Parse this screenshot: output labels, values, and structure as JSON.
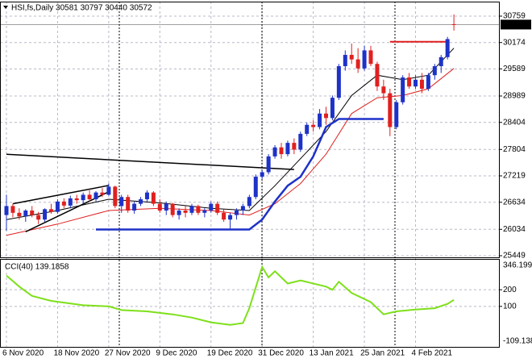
{
  "chart_data": [
    {
      "type": "candlestick",
      "title": "HSI,fs,Daily  30581 30797 30440 30572",
      "categories": [
        "6 Nov 2020",
        null,
        null,
        null,
        null,
        null,
        null,
        null,
        "18 Nov 2020",
        null,
        null,
        null,
        null,
        null,
        null,
        null,
        "27 Nov 2020",
        null,
        null,
        null,
        null,
        null,
        null,
        null,
        "9 Dec 2020",
        null,
        null,
        null,
        null,
        null,
        null,
        null,
        "19 Dec 2020",
        null,
        null,
        null,
        null,
        null,
        null,
        null,
        "31 Dec 2020",
        null,
        null,
        null,
        null,
        null,
        null,
        null,
        "13 Jan 2021",
        null,
        null,
        null,
        null,
        null,
        null,
        null,
        "25 Jan 2021",
        null,
        null,
        null,
        null,
        null,
        null,
        null,
        "4 Feb 2021",
        null,
        null,
        null,
        null,
        null,
        null
      ],
      "candles": [
        [
          26350,
          26800,
          26000,
          26550
        ],
        [
          26550,
          26600,
          26300,
          26400
        ],
        [
          26400,
          26500,
          26250,
          26320
        ],
        [
          26320,
          26480,
          26200,
          26450
        ],
        [
          26450,
          26550,
          26300,
          26350
        ],
        [
          26350,
          26420,
          26150,
          26250
        ],
        [
          26250,
          26500,
          26200,
          26480
        ],
        [
          26480,
          26600,
          26380,
          26420
        ],
        [
          26420,
          26700,
          26380,
          26650
        ],
        [
          26650,
          26720,
          26500,
          26560
        ],
        [
          26560,
          26780,
          26500,
          26720
        ],
        [
          26720,
          26800,
          26600,
          26680
        ],
        [
          26680,
          26850,
          26600,
          26800
        ],
        [
          26800,
          26900,
          26650,
          26700
        ],
        [
          26700,
          26880,
          26650,
          26850
        ],
        [
          26850,
          26950,
          26750,
          26800
        ],
        [
          26800,
          27050,
          26780,
          26980
        ],
        [
          26980,
          27000,
          26500,
          26550
        ],
        [
          26550,
          26800,
          26400,
          26750
        ],
        [
          26750,
          26800,
          26400,
          26450
        ],
        [
          26450,
          26650,
          26380,
          26600
        ],
        [
          26600,
          26750,
          26550,
          26700
        ],
        [
          26700,
          26900,
          26650,
          26850
        ],
        [
          26850,
          26880,
          26550,
          26600
        ],
        [
          26600,
          26700,
          26400,
          26450
        ],
        [
          26450,
          26650,
          26350,
          26600
        ],
        [
          26600,
          26620,
          26300,
          26350
        ],
        [
          26350,
          26500,
          26250,
          26450
        ],
        [
          26450,
          26550,
          26300,
          26400
        ],
        [
          26400,
          26600,
          26350,
          26550
        ],
        [
          26550,
          26580,
          26350,
          26400
        ],
        [
          26400,
          26500,
          26300,
          26450
        ],
        [
          26450,
          26650,
          26400,
          26600
        ],
        [
          26600,
          26650,
          26350,
          26400
        ],
        [
          26400,
          26480,
          26200,
          26250
        ],
        [
          26250,
          26400,
          26050,
          26350
        ],
        [
          26350,
          26500,
          26250,
          26450
        ],
        [
          26450,
          26600,
          26350,
          26550
        ],
        [
          26550,
          26800,
          26500,
          26750
        ],
        [
          26750,
          27250,
          26700,
          27200
        ],
        [
          27200,
          27350,
          27150,
          27300
        ],
        [
          27300,
          27700,
          27250,
          27650
        ],
        [
          27650,
          27900,
          27600,
          27850
        ],
        [
          27850,
          27950,
          27600,
          27700
        ],
        [
          27700,
          28000,
          27650,
          27950
        ],
        [
          27950,
          28050,
          27700,
          27800
        ],
        [
          27800,
          28200,
          27750,
          28150
        ],
        [
          28150,
          28400,
          28100,
          28350
        ],
        [
          28350,
          28450,
          28200,
          28300
        ],
        [
          28300,
          28700,
          28250,
          28600
        ],
        [
          28600,
          28750,
          28350,
          28500
        ],
        [
          28500,
          29000,
          28450,
          28950
        ],
        [
          28950,
          29700,
          28900,
          29650
        ],
        [
          29650,
          30000,
          29550,
          29900
        ],
        [
          29900,
          30150,
          29700,
          29800
        ],
        [
          29800,
          30050,
          29500,
          29600
        ],
        [
          29600,
          30100,
          29550,
          30000
        ],
        [
          30000,
          30100,
          29650,
          29700
        ],
        [
          29700,
          29750,
          29100,
          29200
        ],
        [
          29200,
          29350,
          28900,
          29050
        ],
        [
          29050,
          29150,
          28100,
          28300
        ],
        [
          28300,
          28900,
          28250,
          28850
        ],
        [
          28850,
          29450,
          28800,
          29400
        ],
        [
          29400,
          29500,
          29150,
          29200
        ],
        [
          29200,
          29450,
          29150,
          29350
        ],
        [
          29350,
          29500,
          29050,
          29150
        ],
        [
          29150,
          29500,
          29100,
          29450
        ],
        [
          29450,
          29700,
          29350,
          29650
        ],
        [
          29650,
          29900,
          29500,
          29850
        ],
        [
          29850,
          30300,
          29800,
          30250
        ],
        [
          30581,
          30797,
          30440,
          30572
        ]
      ],
      "up_color": "#1e32c8",
      "down_color": "#e02020",
      "series": [
        {
          "color": "#000000",
          "width": 1,
          "x": [
            0,
            8,
            16,
            24,
            32,
            38,
            42,
            46,
            50,
            54,
            58,
            60,
            62,
            66,
            70
          ],
          "values": [
            26250,
            26450,
            26700,
            26620,
            26500,
            26450,
            27000,
            27600,
            28200,
            29000,
            29450,
            29400,
            29350,
            29450,
            30050
          ]
        },
        {
          "color": "#e02020",
          "width": 1,
          "x": [
            0,
            8,
            16,
            24,
            32,
            38,
            42,
            46,
            50,
            54,
            58,
            62,
            66,
            70
          ],
          "values": [
            25900,
            26150,
            26450,
            26500,
            26450,
            26350,
            26600,
            27050,
            27700,
            28600,
            28950,
            29000,
            29150,
            29600
          ]
        },
        {
          "color": "#1e32c8",
          "width": 2.5,
          "x": [
            14,
            38,
            40,
            42,
            44,
            46,
            48,
            50,
            52,
            59
          ],
          "values": [
            26030,
            26030,
            26250,
            26650,
            27000,
            27200,
            27650,
            28300,
            28480,
            28480
          ]
        }
      ],
      "trendlines": [
        {
          "color": "#000000",
          "width": 1.5,
          "x": [
            0,
            45
          ],
          "values": [
            27697,
            27361
          ]
        },
        {
          "color": "#000000",
          "width": 1.5,
          "x": [
            1,
            16
          ],
          "values": [
            26600,
            27007
          ]
        },
        {
          "color": "#000000",
          "width": 1.5,
          "x": [
            3,
            16
          ],
          "values": [
            25980,
            26865
          ]
        },
        {
          "color": "#e02020",
          "width": 2,
          "x": [
            60,
            69
          ],
          "values": [
            30193,
            30193
          ]
        }
      ],
      "ylim": [
        25449,
        30759
      ],
      "yticks": [
        30759,
        30174,
        29589,
        28989,
        28404,
        27804,
        27219,
        26634,
        26034,
        25449
      ],
      "grid": true
    },
    {
      "type": "line",
      "title": "CCI(40) 139.1858",
      "x": [
        0,
        2,
        4,
        7,
        12,
        16,
        18,
        22,
        26,
        29,
        32,
        35,
        37,
        38,
        40,
        41,
        42,
        44,
        46,
        50,
        51,
        52,
        54,
        57,
        59,
        61,
        64,
        67,
        69,
        70
      ],
      "values": [
        285,
        219,
        163,
        133,
        107,
        100,
        78,
        70,
        52,
        33,
        4,
        -11,
        0,
        89,
        337,
        274,
        311,
        237,
        256,
        219,
        200,
        248,
        181,
        126,
        52,
        70,
        81,
        89,
        115,
        139.1858
      ],
      "color": "#7ee01a",
      "ylim": [
        -109.138,
        346.1991
      ],
      "yticks": [
        200,
        100
      ],
      "grid": true
    }
  ]
}
